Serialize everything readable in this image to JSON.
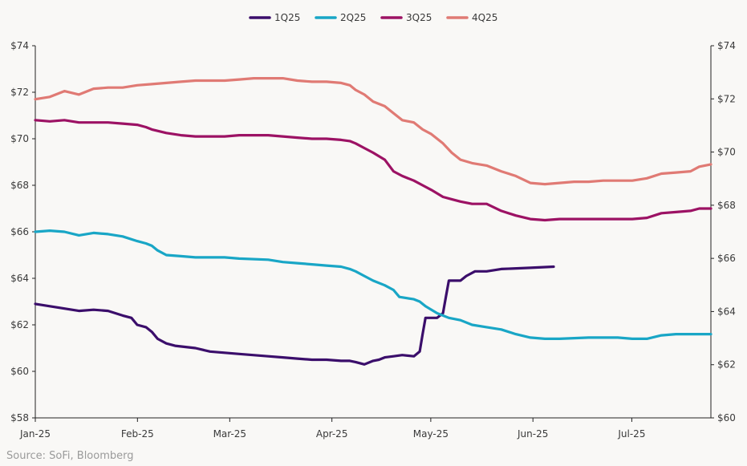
{
  "chart_data": {
    "type": "line",
    "title": "",
    "xlabel": "",
    "ylabel": "",
    "x_tick_labels": [
      "Jan-25",
      "Feb-25",
      "Mar-25",
      "Apr-25",
      "May-25",
      "Jun-25",
      "Jul-25"
    ],
    "x_range_days": [
      0,
      205
    ],
    "left_axis": {
      "ylim": [
        58,
        74
      ],
      "ticks": [
        "$58",
        "$60",
        "$62",
        "$64",
        "$66",
        "$68",
        "$70",
        "$72",
        "$74"
      ]
    },
    "right_axis": {
      "ylim": [
        60,
        74
      ],
      "ticks": [
        "$60",
        "$62",
        "$64",
        "$66",
        "$68",
        "$70",
        "$72",
        "$74"
      ]
    },
    "legend_position": "top-center",
    "series": [
      {
        "name": "1Q25",
        "color": "#3b0e6b",
        "axis": "left",
        "points": [
          [
            0,
            62.9
          ],
          [
            5,
            62.8
          ],
          [
            10,
            62.7
          ],
          [
            15,
            62.6
          ],
          [
            20,
            62.65
          ],
          [
            25,
            62.6
          ],
          [
            30,
            62.4
          ],
          [
            33,
            62.3
          ],
          [
            35,
            62.0
          ],
          [
            38,
            61.9
          ],
          [
            40,
            61.7
          ],
          [
            42,
            61.4
          ],
          [
            45,
            61.2
          ],
          [
            48,
            61.1
          ],
          [
            55,
            61.0
          ],
          [
            60,
            60.85
          ],
          [
            70,
            60.75
          ],
          [
            80,
            60.65
          ],
          [
            85,
            60.6
          ],
          [
            90,
            60.55
          ],
          [
            95,
            60.5
          ],
          [
            100,
            60.5
          ],
          [
            105,
            60.45
          ],
          [
            108,
            60.45
          ],
          [
            110,
            60.4
          ],
          [
            113,
            60.3
          ],
          [
            116,
            60.45
          ],
          [
            118,
            60.5
          ],
          [
            120,
            60.6
          ],
          [
            123,
            60.65
          ],
          [
            126,
            60.7
          ],
          [
            130,
            60.65
          ],
          [
            132,
            60.85
          ],
          [
            133,
            61.6
          ],
          [
            134,
            62.3
          ],
          [
            138,
            62.3
          ],
          [
            140,
            62.5
          ],
          [
            141,
            63.2
          ],
          [
            142,
            63.9
          ],
          [
            146,
            63.9
          ],
          [
            148,
            64.1
          ],
          [
            151,
            64.3
          ],
          [
            155,
            64.3
          ],
          [
            160,
            64.4
          ],
          [
            170,
            64.45
          ],
          [
            178,
            64.5
          ]
        ]
      },
      {
        "name": "2Q25",
        "color": "#19a6c6",
        "axis": "left",
        "points": [
          [
            0,
            66.0
          ],
          [
            5,
            66.05
          ],
          [
            10,
            66.0
          ],
          [
            15,
            65.85
          ],
          [
            20,
            65.95
          ],
          [
            25,
            65.9
          ],
          [
            30,
            65.8
          ],
          [
            35,
            65.6
          ],
          [
            38,
            65.5
          ],
          [
            40,
            65.4
          ],
          [
            42,
            65.2
          ],
          [
            45,
            65.0
          ],
          [
            50,
            64.95
          ],
          [
            55,
            64.9
          ],
          [
            60,
            64.9
          ],
          [
            65,
            64.9
          ],
          [
            70,
            64.85
          ],
          [
            80,
            64.8
          ],
          [
            85,
            64.7
          ],
          [
            90,
            64.65
          ],
          [
            95,
            64.6
          ],
          [
            100,
            64.55
          ],
          [
            105,
            64.5
          ],
          [
            108,
            64.4
          ],
          [
            110,
            64.3
          ],
          [
            113,
            64.1
          ],
          [
            116,
            63.9
          ],
          [
            120,
            63.7
          ],
          [
            123,
            63.5
          ],
          [
            125,
            63.2
          ],
          [
            130,
            63.1
          ],
          [
            132,
            63.0
          ],
          [
            134,
            62.8
          ],
          [
            138,
            62.5
          ],
          [
            142,
            62.3
          ],
          [
            146,
            62.2
          ],
          [
            150,
            62.0
          ],
          [
            155,
            61.9
          ],
          [
            160,
            61.8
          ],
          [
            165,
            61.6
          ],
          [
            170,
            61.45
          ],
          [
            175,
            61.4
          ],
          [
            180,
            61.4
          ],
          [
            190,
            61.45
          ],
          [
            200,
            61.45
          ],
          [
            205,
            61.4
          ],
          [
            210,
            61.4
          ],
          [
            215,
            61.55
          ],
          [
            220,
            61.6
          ],
          [
            225,
            61.6
          ],
          [
            232,
            61.6
          ]
        ]
      },
      {
        "name": "3Q25",
        "color": "#9c1264",
        "axis": "left",
        "points": [
          [
            0,
            70.8
          ],
          [
            5,
            70.75
          ],
          [
            10,
            70.8
          ],
          [
            15,
            70.7
          ],
          [
            20,
            70.7
          ],
          [
            25,
            70.7
          ],
          [
            30,
            70.65
          ],
          [
            35,
            70.6
          ],
          [
            38,
            70.5
          ],
          [
            40,
            70.4
          ],
          [
            45,
            70.25
          ],
          [
            50,
            70.15
          ],
          [
            55,
            70.1
          ],
          [
            60,
            70.1
          ],
          [
            65,
            70.1
          ],
          [
            70,
            70.15
          ],
          [
            80,
            70.15
          ],
          [
            90,
            70.05
          ],
          [
            95,
            70.0
          ],
          [
            100,
            70.0
          ],
          [
            105,
            69.95
          ],
          [
            108,
            69.9
          ],
          [
            110,
            69.8
          ],
          [
            113,
            69.6
          ],
          [
            116,
            69.4
          ],
          [
            120,
            69.1
          ],
          [
            123,
            68.6
          ],
          [
            126,
            68.4
          ],
          [
            130,
            68.2
          ],
          [
            133,
            68.0
          ],
          [
            136,
            67.8
          ],
          [
            140,
            67.5
          ],
          [
            143,
            67.4
          ],
          [
            146,
            67.3
          ],
          [
            150,
            67.2
          ],
          [
            155,
            67.2
          ],
          [
            160,
            66.9
          ],
          [
            165,
            66.7
          ],
          [
            170,
            66.55
          ],
          [
            175,
            66.5
          ],
          [
            180,
            66.55
          ],
          [
            190,
            66.55
          ],
          [
            200,
            66.55
          ],
          [
            205,
            66.55
          ],
          [
            210,
            66.6
          ],
          [
            215,
            66.8
          ],
          [
            220,
            66.85
          ],
          [
            225,
            66.9
          ],
          [
            228,
            67.0
          ],
          [
            232,
            67.0
          ]
        ]
      },
      {
        "name": "4Q25",
        "color": "#e07a74",
        "axis": "left",
        "points": [
          [
            0,
            71.7
          ],
          [
            5,
            71.8
          ],
          [
            10,
            72.05
          ],
          [
            15,
            71.9
          ],
          [
            20,
            72.15
          ],
          [
            25,
            72.2
          ],
          [
            30,
            72.2
          ],
          [
            35,
            72.3
          ],
          [
            40,
            72.35
          ],
          [
            45,
            72.4
          ],
          [
            50,
            72.45
          ],
          [
            55,
            72.5
          ],
          [
            60,
            72.5
          ],
          [
            65,
            72.5
          ],
          [
            70,
            72.55
          ],
          [
            75,
            72.6
          ],
          [
            80,
            72.6
          ],
          [
            85,
            72.6
          ],
          [
            90,
            72.5
          ],
          [
            95,
            72.45
          ],
          [
            100,
            72.45
          ],
          [
            105,
            72.4
          ],
          [
            108,
            72.3
          ],
          [
            110,
            72.1
          ],
          [
            113,
            71.9
          ],
          [
            116,
            71.6
          ],
          [
            120,
            71.4
          ],
          [
            123,
            71.1
          ],
          [
            126,
            70.8
          ],
          [
            130,
            70.7
          ],
          [
            133,
            70.4
          ],
          [
            136,
            70.2
          ],
          [
            140,
            69.8
          ],
          [
            143,
            69.4
          ],
          [
            146,
            69.1
          ],
          [
            150,
            68.95
          ],
          [
            155,
            68.85
          ],
          [
            160,
            68.6
          ],
          [
            165,
            68.4
          ],
          [
            170,
            68.1
          ],
          [
            175,
            68.05
          ],
          [
            180,
            68.1
          ],
          [
            185,
            68.15
          ],
          [
            190,
            68.15
          ],
          [
            195,
            68.2
          ],
          [
            200,
            68.2
          ],
          [
            205,
            68.2
          ],
          [
            210,
            68.3
          ],
          [
            215,
            68.5
          ],
          [
            220,
            68.55
          ],
          [
            225,
            68.6
          ],
          [
            228,
            68.8
          ],
          [
            232,
            68.9
          ]
        ]
      }
    ]
  },
  "source_text": "Source: SoFi, Bloomberg"
}
